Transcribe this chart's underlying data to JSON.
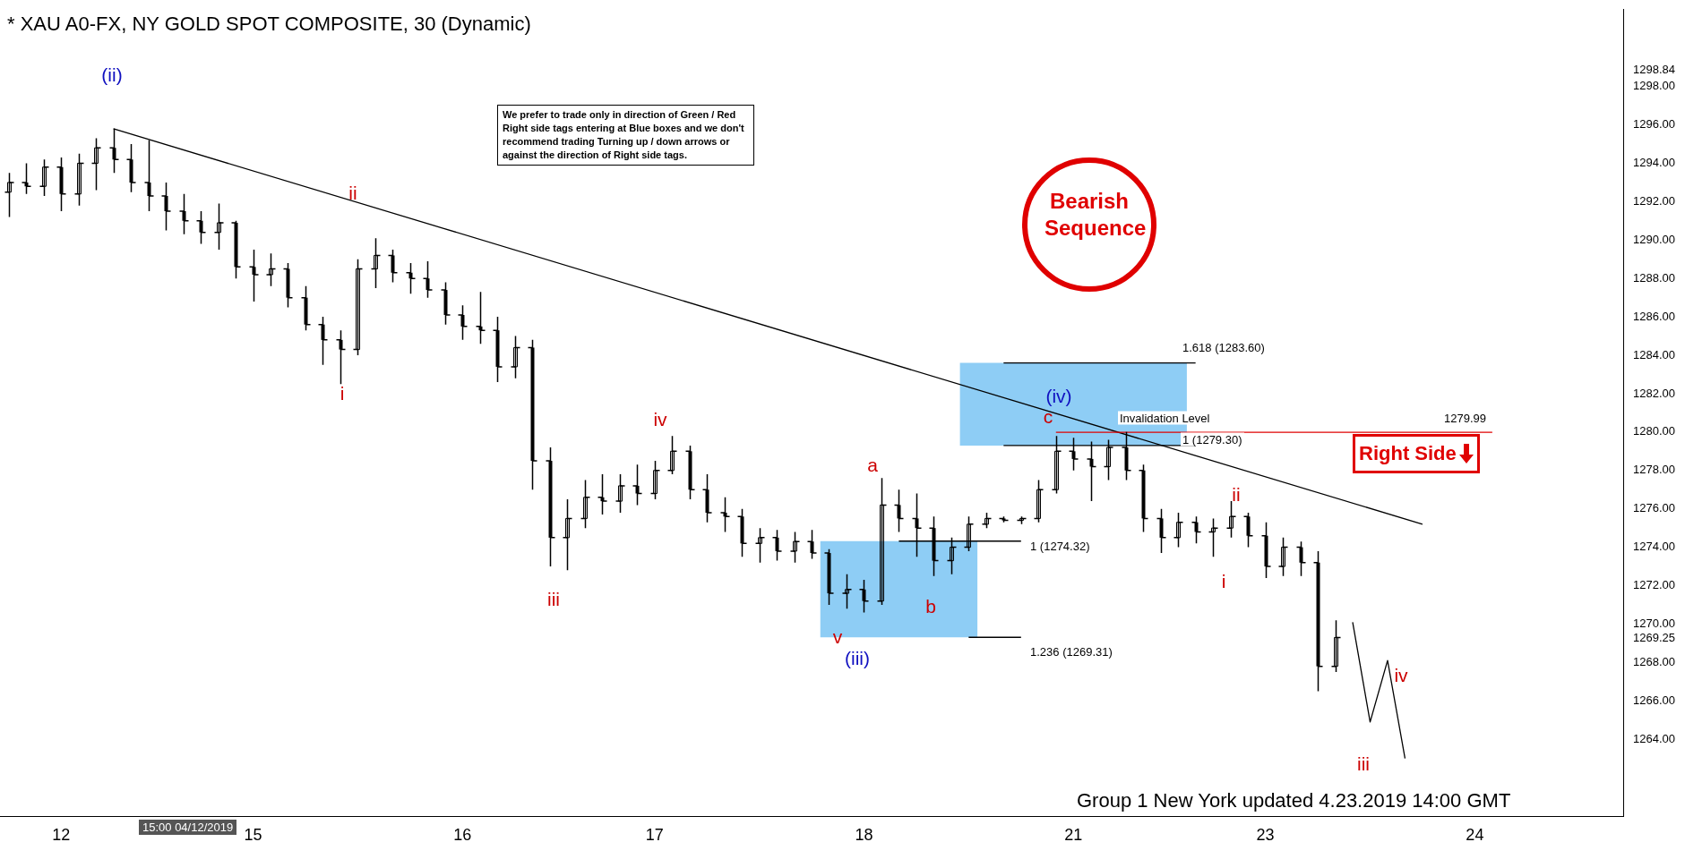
{
  "chart_data": {
    "type": "candlestick",
    "title": "* XAU A0-FX, NY GOLD SPOT COMPOSITE, 30 (Dynamic)",
    "categories": [
      null,
      null,
      null,
      "12",
      null,
      null,
      null,
      null,
      null,
      null,
      null,
      null,
      null,
      null,
      "15",
      null,
      null,
      null,
      null,
      null,
      null,
      null,
      null,
      null,
      null,
      null,
      "16",
      null,
      null,
      null,
      null,
      null,
      null,
      null,
      null,
      null,
      null,
      "17",
      null,
      null,
      null,
      null,
      null,
      null,
      null,
      null,
      null,
      null,
      null,
      "18",
      null,
      null,
      null,
      null,
      null,
      null,
      null,
      null,
      null,
      null,
      null,
      "21",
      null,
      null,
      null,
      null,
      null,
      null,
      null,
      null,
      null,
      null,
      "23",
      null,
      null,
      null,
      null,
      null,
      null,
      null,
      null,
      null,
      null,
      null,
      "24",
      null,
      null,
      null,
      null,
      null,
      null,
      null,
      null
    ],
    "ylim": [
      1260,
      1302
    ],
    "yticks": [
      {
        "value": 1264,
        "label": "1264.00"
      },
      {
        "value": 1266,
        "label": "1266.00"
      },
      {
        "value": 1268,
        "label": "1268.00"
      },
      {
        "value": 1269.25,
        "label": "1269.25"
      },
      {
        "value": 1270,
        "label": "1270.00"
      },
      {
        "value": 1272,
        "label": "1272.00"
      },
      {
        "value": 1274,
        "label": "1274.00"
      },
      {
        "value": 1276,
        "label": "1276.00"
      },
      {
        "value": 1278,
        "label": "1278.00"
      },
      {
        "value": 1280,
        "label": "1280.00"
      },
      {
        "value": 1282,
        "label": "1282.00"
      },
      {
        "value": 1284,
        "label": "1284.00"
      },
      {
        "value": 1286,
        "label": "1286.00"
      },
      {
        "value": 1288,
        "label": "1288.00"
      },
      {
        "value": 1290,
        "label": "1290.00"
      },
      {
        "value": 1292,
        "label": "1292.00"
      },
      {
        "value": 1294,
        "label": "1294.00"
      },
      {
        "value": 1296,
        "label": "1296.00"
      },
      {
        "value": 1298,
        "label": "1298.00"
      },
      {
        "value": 1298.84,
        "label": "1298.84"
      }
    ],
    "bands": [
      {
        "axis": "y",
        "from": 1269.31,
        "to": 1274.32,
        "color": "#8ecdf5"
      },
      {
        "axis": "y",
        "from": 1279.3,
        "to": 1283.6,
        "color": "#8ecdf5"
      }
    ],
    "series": [
      {
        "color": "#000000",
        "ohlc": [
          [
            1292.5,
            1293.5,
            1291.2,
            1293
          ],
          [
            1293,
            1294,
            1292.4,
            1292.8
          ],
          [
            1292.8,
            1294.2,
            1292.3,
            1293.8
          ],
          [
            1293.8,
            1294.3,
            1291.5,
            1292.4
          ],
          [
            1292.4,
            1294.5,
            1291.8,
            1294
          ],
          [
            1294,
            1295.3,
            1292.6,
            1294.8
          ],
          [
            1294.8,
            1295.8,
            1293.5,
            1294.2
          ],
          [
            1294.2,
            1295,
            1292.5,
            1293
          ],
          [
            1293,
            1295.2,
            1291.5,
            1292.3
          ],
          [
            1292.3,
            1293,
            1290.5,
            1291.5
          ],
          [
            1291.5,
            1292.4,
            1290.3,
            1291
          ],
          [
            1291,
            1291.5,
            1289.8,
            1290.4
          ],
          [
            1290.4,
            1291.9,
            1289.5,
            1290.9
          ],
          [
            1290.9,
            1291,
            1288,
            1288.6
          ],
          [
            1288.6,
            1289.5,
            1286.8,
            1288.2
          ],
          [
            1288.2,
            1289.3,
            1287.6,
            1288.5
          ],
          [
            1288.5,
            1288.8,
            1286.5,
            1287
          ],
          [
            1287,
            1287.6,
            1285.3,
            1285.6
          ],
          [
            1285.6,
            1286,
            1283.5,
            1284.8
          ],
          [
            1284.8,
            1285.3,
            1282.5,
            1284.3
          ],
          [
            1284.3,
            1289,
            1284,
            1288.5
          ],
          [
            1288.5,
            1290.1,
            1287.5,
            1289.2
          ],
          [
            1289.2,
            1289.5,
            1287.8,
            1288.3
          ],
          [
            1288.3,
            1288.8,
            1287.2,
            1288
          ],
          [
            1288,
            1288.9,
            1287,
            1287.4
          ],
          [
            1287.4,
            1287.8,
            1285.6,
            1286.1
          ],
          [
            1286.1,
            1286.6,
            1284.8,
            1285.5
          ],
          [
            1285.5,
            1287.3,
            1284.6,
            1285.3
          ],
          [
            1285.3,
            1286,
            1282.6,
            1283.4
          ],
          [
            1283.4,
            1285,
            1282.8,
            1284.4
          ],
          [
            1284.4,
            1284.8,
            1277,
            1278.5
          ],
          [
            1278.5,
            1279.2,
            1273,
            1274.5
          ],
          [
            1274.5,
            1276.5,
            1272.8,
            1275.5
          ],
          [
            1275.5,
            1277.5,
            1275,
            1276.6
          ],
          [
            1276.6,
            1277.8,
            1275.7,
            1276.4
          ],
          [
            1276.4,
            1277.8,
            1275.8,
            1277.2
          ],
          [
            1277.2,
            1278.3,
            1276.2,
            1276.8
          ],
          [
            1276.8,
            1278.5,
            1276.5,
            1278
          ],
          [
            1278,
            1279.8,
            1277.8,
            1279
          ],
          [
            1279,
            1279.3,
            1276.5,
            1277
          ],
          [
            1277,
            1277.8,
            1275.3,
            1275.8
          ],
          [
            1275.8,
            1276.6,
            1274.8,
            1275.6
          ],
          [
            1275.6,
            1276,
            1273.5,
            1274.2
          ],
          [
            1274.2,
            1275,
            1273.2,
            1274.5
          ],
          [
            1274.5,
            1274.9,
            1273.3,
            1273.8
          ],
          [
            1273.8,
            1274.8,
            1273.2,
            1274.3
          ],
          [
            1274.3,
            1274.9,
            1273.4,
            1273.7
          ],
          [
            1273.7,
            1273.9,
            1271,
            1271.6
          ],
          [
            1271.6,
            1272.6,
            1270.8,
            1271.8
          ],
          [
            1271.8,
            1272.3,
            1270.6,
            1271.2
          ],
          [
            1271.2,
            1277.6,
            1271,
            1276.2
          ],
          [
            1276.2,
            1277,
            1274.8,
            1275.5
          ],
          [
            1275.5,
            1276.8,
            1273.5,
            1275
          ],
          [
            1275,
            1275.6,
            1272.5,
            1273.3
          ],
          [
            1273.3,
            1274.5,
            1272.6,
            1274
          ],
          [
            1274,
            1275.6,
            1273.8,
            1275.2
          ],
          [
            1275.2,
            1275.8,
            1275,
            1275.5
          ],
          [
            1275.5,
            1275.6,
            1275.3,
            1275.4
          ],
          [
            1275.4,
            1275.6,
            1275.2,
            1275.5
          ],
          [
            1275.5,
            1277.5,
            1275.3,
            1277
          ],
          [
            1277,
            1279.8,
            1276.8,
            1279
          ],
          [
            1279,
            1279.7,
            1278,
            1278.6
          ],
          [
            1278.6,
            1279.5,
            1276.4,
            1278.2
          ],
          [
            1278.2,
            1279.6,
            1277.5,
            1279.2
          ],
          [
            1279.2,
            1280,
            1277.5,
            1278
          ],
          [
            1278,
            1278.3,
            1274.8,
            1275.5
          ],
          [
            1275.5,
            1276,
            1273.7,
            1274.5
          ],
          [
            1274.5,
            1275.8,
            1274,
            1275.3
          ],
          [
            1275.3,
            1275.6,
            1274.2,
            1274.8
          ],
          [
            1274.8,
            1275.5,
            1273.5,
            1275
          ],
          [
            1275,
            1276.4,
            1274.5,
            1275.6
          ],
          [
            1275.6,
            1275.8,
            1274,
            1274.6
          ],
          [
            1274.6,
            1275.3,
            1272.4,
            1273
          ],
          [
            1273,
            1274.5,
            1272.5,
            1274
          ],
          [
            1274,
            1274.3,
            1272.5,
            1273.2
          ],
          [
            1273.2,
            1273.8,
            1266.5,
            1267.8
          ],
          [
            1267.8,
            1270.2,
            1267.5,
            1269.3
          ],
          null,
          null,
          null,
          null,
          null,
          null,
          null,
          null,
          null,
          null,
          null,
          null,
          null,
          null,
          null,
          null
        ]
      },
      {
        "type": "line",
        "color": "#000000",
        "values": [
          null,
          null,
          null,
          null,
          null,
          null,
          1295.8,
          null,
          null,
          null,
          null,
          null,
          null,
          null,
          null,
          null,
          null,
          null,
          null,
          null,
          null,
          null,
          null,
          null,
          null,
          null,
          null,
          null,
          null,
          null,
          null,
          null,
          null,
          null,
          null,
          null,
          null,
          null,
          null,
          null,
          null,
          null,
          null,
          null,
          null,
          null,
          null,
          null,
          null,
          null,
          null,
          null,
          null,
          null,
          null,
          null,
          null,
          null,
          null,
          null,
          null,
          null,
          null,
          null,
          null,
          null,
          null,
          null,
          null,
          null,
          null,
          null,
          null,
          null,
          null,
          null,
          null,
          null,
          null,
          null,
          null,
          1275.2,
          null,
          null,
          null,
          null,
          null,
          null,
          null,
          null,
          null,
          null,
          null
        ]
      },
      {
        "type": "line",
        "color": "#000000",
        "values": [
          null,
          null,
          null,
          null,
          null,
          null,
          null,
          null,
          null,
          null,
          null,
          null,
          null,
          null,
          null,
          null,
          null,
          null,
          null,
          null,
          null,
          null,
          null,
          null,
          null,
          null,
          null,
          null,
          null,
          null,
          null,
          null,
          null,
          null,
          null,
          null,
          null,
          null,
          null,
          null,
          null,
          null,
          null,
          null,
          null,
          null,
          null,
          null,
          null,
          null,
          null,
          null,
          null,
          null,
          null,
          null,
          null,
          1283.6,
          null,
          null,
          null,
          null,
          null,
          null,
          null,
          null,
          null,
          null,
          1283.6,
          null,
          null,
          null,
          null,
          null,
          null,
          null,
          null,
          null,
          null,
          null,
          null,
          null,
          null,
          null,
          null,
          null,
          null,
          null,
          null,
          null,
          null,
          null,
          null
        ]
      },
      {
        "type": "line",
        "color": "#000000",
        "values": [
          null,
          null,
          null,
          null,
          null,
          null,
          null,
          null,
          null,
          null,
          null,
          null,
          null,
          null,
          null,
          null,
          null,
          null,
          null,
          null,
          null,
          null,
          null,
          null,
          null,
          null,
          null,
          null,
          null,
          null,
          null,
          null,
          null,
          null,
          null,
          null,
          null,
          null,
          null,
          null,
          null,
          null,
          null,
          null,
          null,
          null,
          null,
          null,
          null,
          null,
          null,
          null,
          null,
          null,
          null,
          null,
          null,
          1279.3,
          null,
          null,
          null,
          null,
          null,
          null,
          null,
          null,
          null,
          null,
          1279.3,
          null,
          null,
          null,
          null,
          null,
          null,
          null,
          null,
          null,
          null,
          null,
          null,
          null,
          null,
          null,
          null,
          null,
          null,
          null,
          null,
          null,
          null,
          null,
          null
        ]
      },
      {
        "type": "line",
        "color": "#000000",
        "values": [
          null,
          null,
          null,
          null,
          null,
          null,
          null,
          null,
          null,
          null,
          null,
          null,
          null,
          null,
          null,
          null,
          null,
          null,
          null,
          null,
          null,
          null,
          null,
          null,
          null,
          null,
          null,
          null,
          null,
          null,
          null,
          null,
          null,
          null,
          null,
          null,
          null,
          null,
          null,
          null,
          null,
          null,
          null,
          null,
          null,
          null,
          null,
          null,
          null,
          null,
          null,
          1274.32,
          null,
          null,
          null,
          null,
          null,
          null,
          1274.32,
          null,
          null,
          null,
          null,
          null,
          null,
          null,
          null,
          null,
          null,
          null,
          null,
          null,
          null,
          null,
          null,
          null,
          null,
          null,
          null,
          null,
          null,
          null,
          null,
          null,
          null,
          null,
          null,
          null,
          null,
          null,
          null,
          null,
          null
        ]
      },
      {
        "type": "line",
        "color": "#000000",
        "values": [
          null,
          null,
          null,
          null,
          null,
          null,
          null,
          null,
          null,
          null,
          null,
          null,
          null,
          null,
          null,
          null,
          null,
          null,
          null,
          null,
          null,
          null,
          null,
          null,
          null,
          null,
          null,
          null,
          null,
          null,
          null,
          null,
          null,
          null,
          null,
          null,
          null,
          null,
          null,
          null,
          null,
          null,
          null,
          null,
          null,
          null,
          null,
          null,
          null,
          null,
          null,
          null,
          null,
          null,
          null,
          1269.31,
          null,
          null,
          1269.31,
          null,
          null,
          null,
          null,
          null,
          null,
          null,
          null,
          null,
          null,
          null,
          null,
          null,
          null,
          null,
          null,
          null,
          null,
          null,
          null,
          null,
          null,
          null,
          null,
          null,
          null,
          null,
          null,
          null,
          null,
          null,
          null,
          null,
          null
        ]
      },
      {
        "type": "line",
        "color": "#e00000",
        "values": [
          null,
          null,
          null,
          null,
          null,
          null,
          null,
          null,
          null,
          null,
          null,
          null,
          null,
          null,
          null,
          null,
          null,
          null,
          null,
          null,
          null,
          null,
          null,
          null,
          null,
          null,
          null,
          null,
          null,
          null,
          null,
          null,
          null,
          null,
          null,
          null,
          null,
          null,
          null,
          null,
          null,
          null,
          null,
          null,
          null,
          null,
          null,
          null,
          null,
          null,
          null,
          null,
          null,
          null,
          null,
          null,
          null,
          null,
          null,
          null,
          1279.99,
          null,
          null,
          null,
          null,
          null,
          null,
          null,
          null,
          null,
          null,
          null,
          null,
          null,
          null,
          null,
          null,
          null,
          null,
          null,
          null,
          null,
          null,
          null,
          null,
          1279.99,
          null,
          null,
          null,
          null,
          null,
          null,
          null
        ]
      },
      {
        "type": "line",
        "color": "#000000",
        "values": [
          null,
          null,
          null,
          null,
          null,
          null,
          null,
          null,
          null,
          null,
          null,
          null,
          null,
          null,
          null,
          null,
          null,
          null,
          null,
          null,
          null,
          null,
          null,
          null,
          null,
          null,
          null,
          null,
          null,
          null,
          null,
          null,
          null,
          null,
          null,
          null,
          null,
          null,
          null,
          null,
          null,
          null,
          null,
          null,
          null,
          null,
          null,
          null,
          null,
          null,
          null,
          null,
          null,
          null,
          null,
          null,
          null,
          null,
          null,
          null,
          null,
          null,
          null,
          null,
          null,
          null,
          null,
          null,
          null,
          null,
          null,
          null,
          null,
          null,
          null,
          null,
          null,
          1270.1,
          1264.9,
          1268.1,
          1263,
          null,
          null,
          null,
          null,
          null,
          null,
          null,
          null,
          null,
          null,
          null,
          null
        ]
      }
    ],
    "annotations": [
      "We prefer to trade only in direction of Green / Red Right side tags entering at Blue boxes and we don't recommend trading Turning up / down arrows or against the direction of Right side tags.",
      "Bearish Sequence",
      "Right Side",
      "15:00 04/12/2019",
      "Group 1 New York updated 4.23.2019 14:00 GMT",
      "1.618 (1283.60)",
      "1 (1279.30)",
      "1 (1274.32)",
      "1.236 (1269.31)",
      "Invalidation Level",
      "1279.99",
      "(ii)",
      "i",
      "ii",
      "iii",
      "iv",
      "v",
      "(iii)",
      "a",
      "b",
      "c",
      "(iv)",
      "i",
      "ii",
      "iii",
      "iv"
    ]
  }
}
